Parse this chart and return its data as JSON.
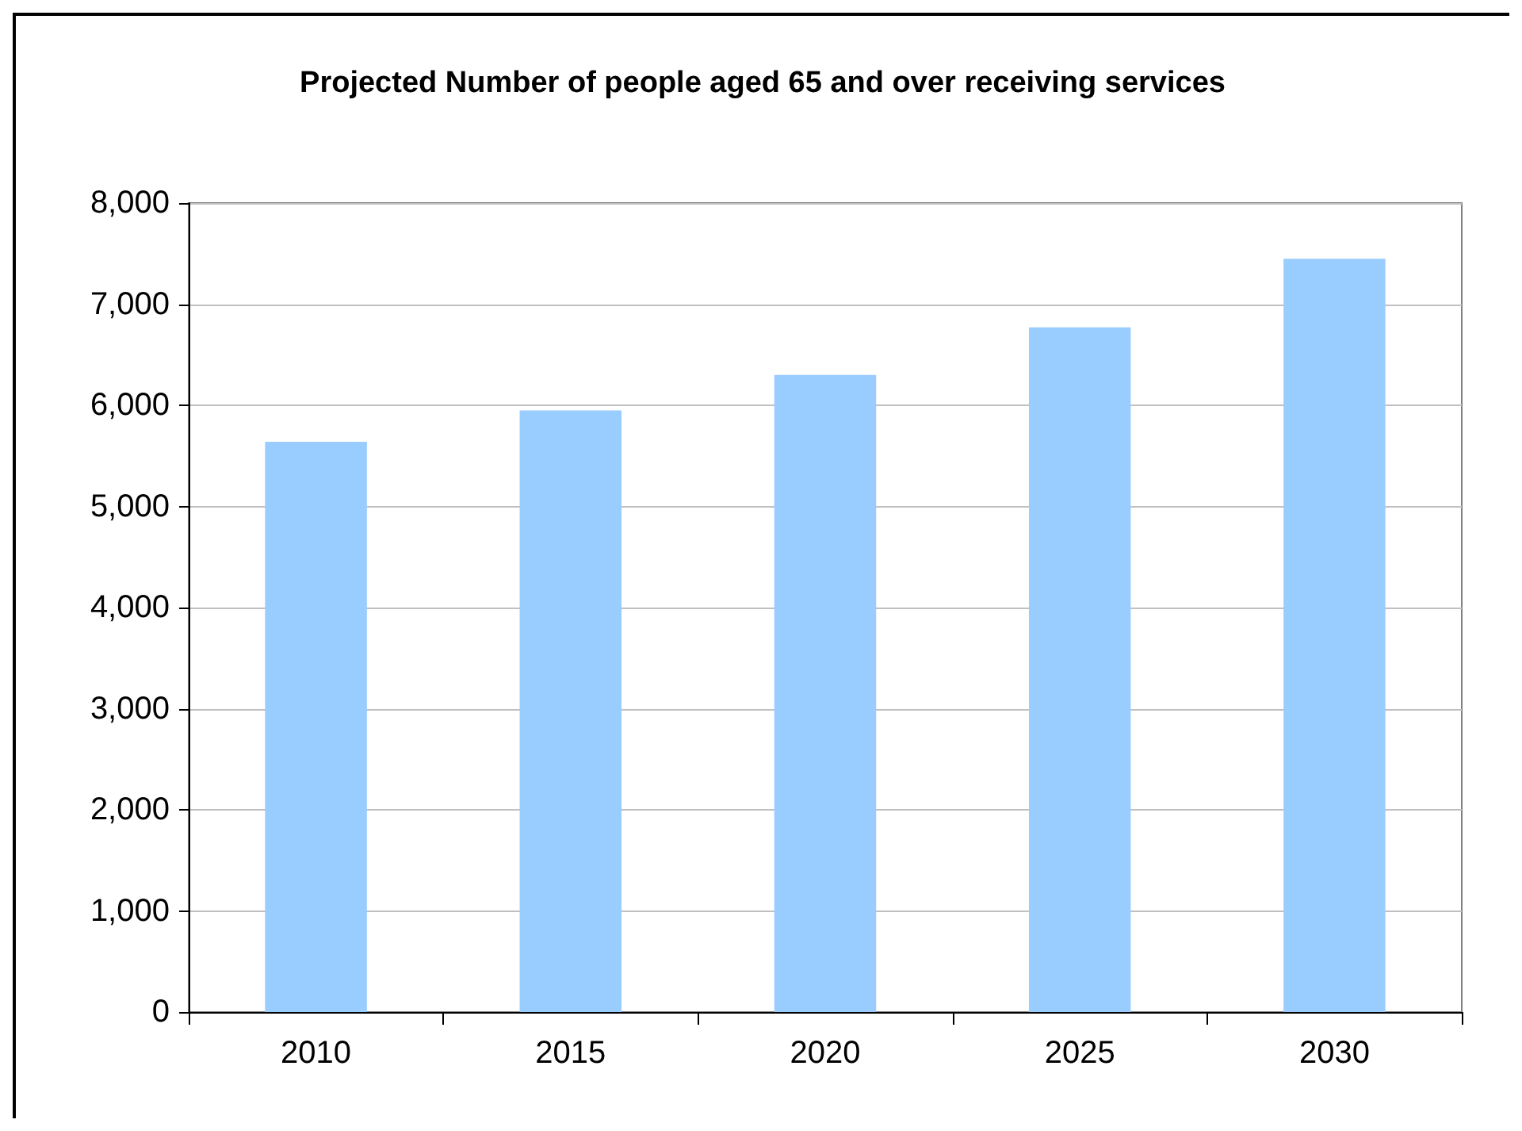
{
  "chart_data": {
    "type": "bar",
    "title": "Projected Number of people aged 65 and over receiving services",
    "categories": [
      "2010",
      "2015",
      "2020",
      "2025",
      "2030"
    ],
    "values": [
      5640,
      5950,
      6300,
      6770,
      7450
    ],
    "color": "#99ccff",
    "ylim": [
      0,
      8000
    ],
    "yticks": [
      0,
      {
        "value": 1000,
        "label": "1,000"
      },
      {
        "value": 2000,
        "label": "2,000"
      },
      {
        "value": 3000,
        "label": "3,000"
      },
      {
        "value": 4000,
        "label": "4,000"
      },
      {
        "value": 5000,
        "label": "5,000"
      },
      {
        "value": 6000,
        "label": "6,000"
      },
      {
        "value": 7000,
        "label": "7,000"
      },
      {
        "value": 8000,
        "label": "8,000"
      }
    ],
    "grid": true
  }
}
